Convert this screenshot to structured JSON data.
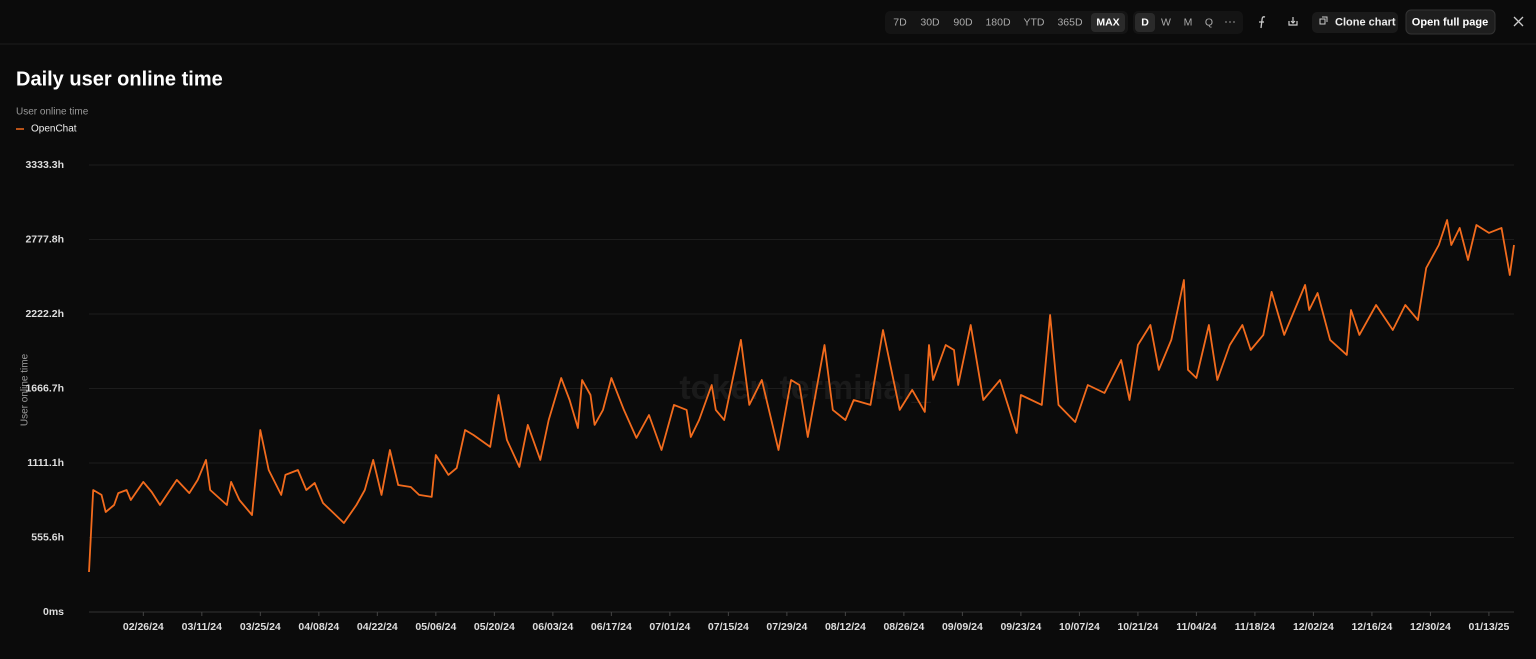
{
  "toolbar": {
    "ranges": [
      "7D",
      "30D",
      "90D",
      "180D",
      "YTD",
      "365D",
      "MAX"
    ],
    "active_range": "MAX",
    "granularity": [
      "D",
      "W",
      "M",
      "Q"
    ],
    "active_granularity": "D",
    "clone": "Clone chart",
    "open": "Open full page"
  },
  "watermark": "token terminal_",
  "chart_data": {
    "type": "line",
    "title": "Daily user online time",
    "subtitle": "User online time",
    "y_label": "User online time",
    "xlim": [
      "02/13/24",
      "01/19/25"
    ],
    "xticks": [
      "02/26/24",
      "03/11/24",
      "03/25/24",
      "04/08/24",
      "04/22/24",
      "05/06/24",
      "05/20/24",
      "06/03/24",
      "06/17/24",
      "07/01/24",
      "07/15/24",
      "07/29/24",
      "08/12/24",
      "08/26/24",
      "09/09/24",
      "09/23/24",
      "10/07/24",
      "10/21/24",
      "11/04/24",
      "11/18/24",
      "12/02/24",
      "12/16/24",
      "12/30/24",
      "01/13/25"
    ],
    "ylim": [
      0,
      3333.3
    ],
    "yticks": [
      {
        "value": 0,
        "label": "0ms"
      },
      {
        "value": 555.6,
        "label": "555.6h"
      },
      {
        "value": 1111.1,
        "label": "1111.1h"
      },
      {
        "value": 1666.7,
        "label": "1666.7h"
      },
      {
        "value": 2222.2,
        "label": "2222.2h"
      },
      {
        "value": 2777.8,
        "label": "2777.8h"
      },
      {
        "value": 3333.3,
        "label": "3333.3h"
      }
    ],
    "grid": true,
    "x": [
      "02/13/24",
      "02/14/24",
      "02/16/24",
      "02/17/24",
      "02/19/24",
      "02/20/24",
      "02/22/24",
      "02/23/24",
      "02/26/24",
      "02/28/24",
      "03/01/24",
      "03/05/24",
      "03/08/24",
      "03/10/24",
      "03/12/24",
      "03/13/24",
      "03/17/24",
      "03/18/24",
      "03/20/24",
      "03/23/24",
      "03/25/24",
      "03/27/24",
      "03/30/24",
      "03/31/24",
      "04/03/24",
      "04/05/24",
      "04/07/24",
      "04/09/24",
      "04/12/24",
      "04/14/24",
      "04/17/24",
      "04/19/24",
      "04/21/24",
      "04/23/24",
      "04/25/24",
      "04/27/24",
      "04/30/24",
      "05/02/24",
      "05/05/24",
      "05/06/24",
      "05/09/24",
      "05/11/24",
      "05/13/24",
      "05/15/24",
      "05/19/24",
      "05/21/24",
      "05/23/24",
      "05/26/24",
      "05/28/24",
      "05/31/24",
      "06/02/24",
      "06/05/24",
      "06/07/24",
      "06/09/24",
      "06/10/24",
      "06/12/24",
      "06/13/24",
      "06/15/24",
      "06/17/24",
      "06/20/24",
      "06/23/24",
      "06/26/24",
      "06/29/24",
      "07/02/24",
      "07/05/24",
      "07/06/24",
      "07/08/24",
      "07/11/24",
      "07/12/24",
      "07/14/24",
      "07/18/24",
      "07/20/24",
      "07/23/24",
      "07/27/24",
      "07/30/24",
      "08/01/24",
      "08/03/24",
      "08/07/24",
      "08/09/24",
      "08/12/24",
      "08/14/24",
      "08/18/24",
      "08/21/24",
      "08/25/24",
      "08/28/24",
      "08/31/24",
      "09/01/24",
      "09/02/24",
      "09/05/24",
      "09/07/24",
      "09/08/24",
      "09/11/24",
      "09/14/24",
      "09/18/24",
      "09/22/24",
      "09/23/24",
      "09/28/24",
      "09/30/24",
      "10/02/24",
      "10/06/24",
      "10/09/24",
      "10/13/24",
      "10/17/24",
      "10/19/24",
      "10/21/24",
      "10/24/24",
      "10/26/24",
      "10/29/24",
      "11/01/24",
      "11/02/24",
      "11/04/24",
      "11/07/24",
      "11/09/24",
      "11/12/24",
      "11/15/24",
      "11/17/24",
      "11/20/24",
      "11/22/24",
      "11/25/24",
      "11/30/24",
      "12/01/24",
      "12/03/24",
      "12/06/24",
      "12/10/24",
      "12/11/24",
      "12/13/24",
      "12/17/24",
      "12/21/24",
      "12/24/24",
      "12/27/24",
      "12/29/24",
      "01/01/25",
      "01/03/25",
      "01/04/25",
      "01/06/25",
      "01/08/25",
      "01/10/25",
      "01/13/25",
      "01/16/25",
      "01/18/25",
      "01/19/25"
    ],
    "series": [
      {
        "name": "OpenChat",
        "color": "#f26b1d",
        "values": [
          298,
          910,
          873,
          746,
          798,
          887,
          910,
          835,
          970,
          895,
          798,
          985,
          887,
          985,
          1134,
          910,
          798,
          970,
          835,
          723,
          1357,
          1059,
          873,
          1022,
          1059,
          910,
          962,
          813,
          723,
          664,
          798,
          910,
          1134,
          873,
          1208,
          947,
          932,
          873,
          858,
          1171,
          1022,
          1074,
          1357,
          1320,
          1231,
          1618,
          1283,
          1081,
          1395,
          1134,
          1432,
          1745,
          1581,
          1372,
          1730,
          1618,
          1395,
          1507,
          1745,
          1507,
          1298,
          1469,
          1208,
          1544,
          1507,
          1305,
          1432,
          1693,
          1507,
          1432,
          2029,
          1544,
          1730,
          1208,
          1730,
          1693,
          1305,
          1991,
          1507,
          1432,
          1581,
          1544,
          2103,
          1507,
          1656,
          1492,
          1991,
          1730,
          1991,
          1954,
          1693,
          2140,
          1581,
          1730,
          1335,
          1618,
          1544,
          2215,
          1544,
          1417,
          1693,
          1633,
          1879,
          1581,
          1991,
          2140,
          1805,
          2029,
          2476,
          1805,
          1745,
          2140,
          1730,
          1991,
          2140,
          1954,
          2066,
          2387,
          2066,
          2439,
          2252,
          2379,
          2029,
          1917,
          2252,
          2066,
          2289,
          2103,
          2289,
          2177,
          2565,
          2737,
          2923,
          2737,
          2864,
          2625,
          2886,
          2827,
          2864,
          2513,
          2737
        ]
      }
    ]
  }
}
